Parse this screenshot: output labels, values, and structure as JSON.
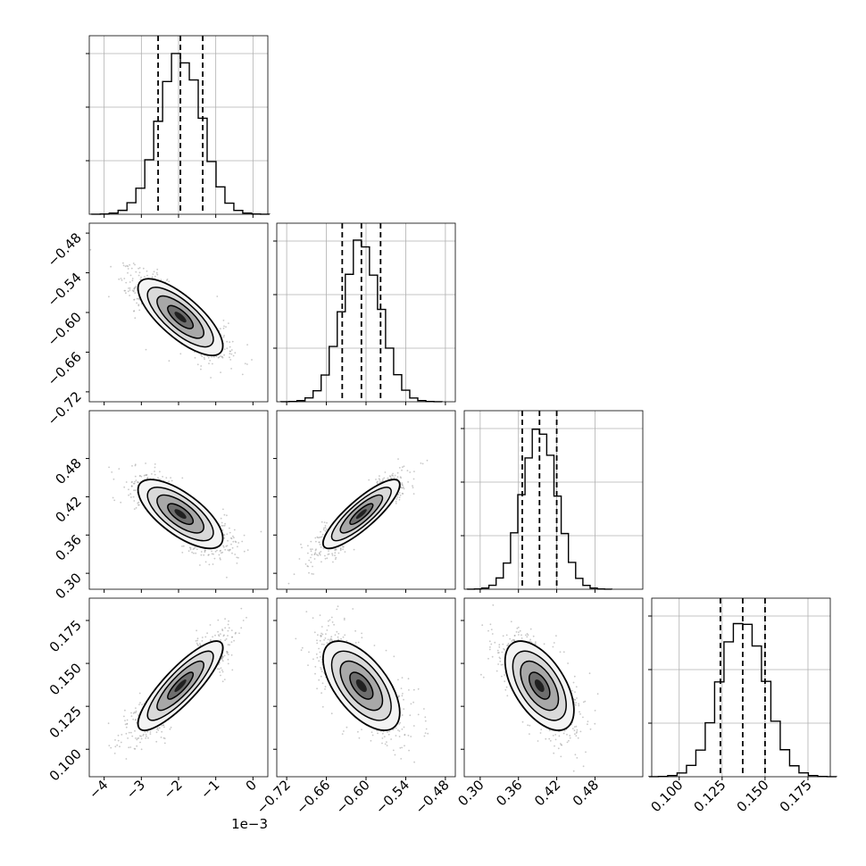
{
  "chart_data": {
    "type": "corner",
    "variables": [
      {
        "range": [
          -4.4,
          0.4
        ],
        "ticks": [
          -4,
          -3,
          -2,
          -1,
          0
        ],
        "tick_labels": [
          "−4",
          "−3",
          "−2",
          "−1",
          "0"
        ],
        "offset_label": "1e−3",
        "quantiles": [
          -2.55,
          -1.95,
          -1.35
        ],
        "mean": -1.95,
        "sd": 0.57,
        "hist_peak_fraction": 1.0
      },
      {
        "range": [
          -0.735,
          -0.465
        ],
        "ticks": [
          -0.72,
          -0.66,
          -0.6,
          -0.54,
          -0.48
        ],
        "tick_labels": [
          "−0.72",
          "−0.66",
          "−0.60",
          "−0.54",
          "−0.48"
        ],
        "quantiles": [
          -0.636,
          -0.607,
          -0.578
        ],
        "mean": -0.607,
        "sd": 0.029
      },
      {
        "range": [
          0.275,
          0.555
        ],
        "ticks": [
          0.3,
          0.36,
          0.42,
          0.48
        ],
        "tick_labels": [
          "0.30",
          "0.36",
          "0.42",
          "0.48"
        ],
        "quantiles": [
          0.366,
          0.393,
          0.42
        ],
        "mean": 0.393,
        "sd": 0.027
      },
      {
        "range": [
          0.084,
          0.188
        ],
        "ticks": [
          0.1,
          0.125,
          0.15,
          0.175
        ],
        "tick_labels": [
          "0.100",
          "0.125",
          "0.150",
          "0.175"
        ],
        "quantiles": [
          0.124,
          0.137,
          0.15
        ],
        "mean": 0.137,
        "sd": 0.013
      }
    ],
    "correlations": {
      "1-0": -0.75,
      "2-0": -0.7,
      "2-1": 0.85,
      "3-0": 0.85,
      "3-1": -0.6,
      "3-2": -0.55
    },
    "grid": true,
    "colors": {
      "line": "#000000",
      "points": "#9a9a9a",
      "grid": "#b0b0b0"
    }
  }
}
